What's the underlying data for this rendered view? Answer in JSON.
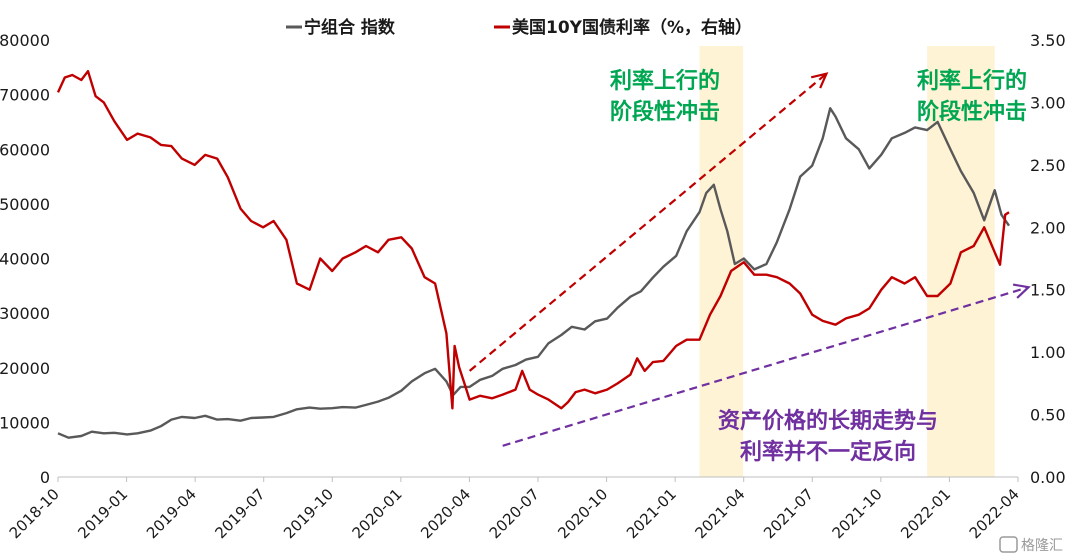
{
  "chart_data": {
    "type": "line",
    "legend": {
      "placement": "top-center",
      "items": [
        {
          "label": "宁组合 指数",
          "color": "#595959"
        },
        {
          "label": "美国10Y国债利率（%，右轴）",
          "color": "#c00000"
        }
      ]
    },
    "x_ticks": [
      "2018-10",
      "2019-01",
      "2019-04",
      "2019-07",
      "2019-10",
      "2020-01",
      "2020-04",
      "2020-07",
      "2020-10",
      "2021-01",
      "2021-04",
      "2021-07",
      "2021-10",
      "2022-01",
      "2022-04"
    ],
    "y_left": {
      "min": 0,
      "max": 80000,
      "ticks": [
        "0",
        "10000",
        "20000",
        "30000",
        "40000",
        "50000",
        "60000",
        "70000",
        "80000"
      ]
    },
    "y_right": {
      "min": 0,
      "max": 3.5,
      "ticks": [
        "0.00",
        "0.50",
        "1.00",
        "1.50",
        "2.00",
        "2.50",
        "3.00",
        "3.50"
      ]
    },
    "grid": false,
    "series": [
      {
        "name": "宁组合 指数",
        "axis": "left",
        "color": "#595959",
        "x": [
          "2018-10-01",
          "2018-10-15",
          "2018-11-01",
          "2018-11-15",
          "2018-12-01",
          "2018-12-15",
          "2019-01-01",
          "2019-01-15",
          "2019-02-01",
          "2019-02-15",
          "2019-03-01",
          "2019-03-15",
          "2019-04-01",
          "2019-04-15",
          "2019-05-01",
          "2019-05-15",
          "2019-06-01",
          "2019-06-15",
          "2019-07-01",
          "2019-07-15",
          "2019-08-01",
          "2019-08-15",
          "2019-09-01",
          "2019-09-15",
          "2019-10-01",
          "2019-10-15",
          "2019-11-01",
          "2019-11-15",
          "2019-12-01",
          "2019-12-15",
          "2020-01-01",
          "2020-01-15",
          "2020-02-01",
          "2020-02-15",
          "2020-03-01",
          "2020-03-10",
          "2020-03-20",
          "2020-04-01",
          "2020-04-15",
          "2020-05-01",
          "2020-05-15",
          "2020-06-01",
          "2020-06-15",
          "2020-07-01",
          "2020-07-15",
          "2020-08-01",
          "2020-08-15",
          "2020-09-01",
          "2020-09-15",
          "2020-10-01",
          "2020-10-15",
          "2020-11-01",
          "2020-11-15",
          "2020-12-01",
          "2020-12-15",
          "2021-01-01",
          "2021-01-15",
          "2021-02-01",
          "2021-02-10",
          "2021-02-20",
          "2021-03-01",
          "2021-03-10",
          "2021-03-20",
          "2021-04-01",
          "2021-04-15",
          "2021-05-01",
          "2021-05-15",
          "2021-06-01",
          "2021-06-15",
          "2021-07-01",
          "2021-07-15",
          "2021-07-25",
          "2021-08-01",
          "2021-08-15",
          "2021-09-01",
          "2021-09-15",
          "2021-10-01",
          "2021-10-15",
          "2021-11-01",
          "2021-11-15",
          "2021-12-01",
          "2021-12-15",
          "2022-01-01",
          "2022-01-15",
          "2022-02-01",
          "2022-02-15",
          "2022-03-01",
          "2022-03-10",
          "2022-03-20"
        ],
        "y": [
          8000,
          7200,
          7500,
          8300,
          8000,
          8100,
          7800,
          8000,
          8500,
          9300,
          10500,
          11000,
          10800,
          11200,
          10500,
          10600,
          10300,
          10800,
          10900,
          11000,
          11700,
          12400,
          12700,
          12500,
          12600,
          12800,
          12700,
          13200,
          13800,
          14500,
          15800,
          17500,
          19000,
          19800,
          17500,
          15000,
          16500,
          16500,
          17800,
          18500,
          19800,
          20500,
          21500,
          22000,
          24500,
          26000,
          27500,
          27000,
          28500,
          29000,
          31000,
          33000,
          34000,
          36500,
          38500,
          40500,
          45000,
          48500,
          52000,
          53500,
          49000,
          45000,
          39000,
          40000,
          38000,
          39000,
          43000,
          49000,
          55000,
          57000,
          62000,
          67500,
          66000,
          62000,
          60000,
          56500,
          59000,
          62000,
          63000,
          64000,
          63500,
          65000,
          60000,
          56000,
          52000,
          47000,
          52500,
          48000,
          46000
        ],
        "legend_marker": "line"
      },
      {
        "name": "美国10Y国债利率（%，右轴）",
        "axis": "right",
        "color": "#c00000",
        "x": [
          "2018-10-01",
          "2018-10-10",
          "2018-10-20",
          "2018-11-01",
          "2018-11-10",
          "2018-11-20",
          "2018-12-01",
          "2018-12-15",
          "2019-01-01",
          "2019-01-15",
          "2019-02-01",
          "2019-02-15",
          "2019-03-01",
          "2019-03-15",
          "2019-04-01",
          "2019-04-15",
          "2019-05-01",
          "2019-05-15",
          "2019-06-01",
          "2019-06-15",
          "2019-07-01",
          "2019-07-15",
          "2019-08-01",
          "2019-08-15",
          "2019-09-01",
          "2019-09-15",
          "2019-10-01",
          "2019-10-15",
          "2019-11-01",
          "2019-11-15",
          "2019-12-01",
          "2019-12-15",
          "2020-01-01",
          "2020-01-15",
          "2020-02-01",
          "2020-02-15",
          "2020-03-01",
          "2020-03-09",
          "2020-03-12",
          "2020-03-18",
          "2020-03-25",
          "2020-04-01",
          "2020-04-15",
          "2020-05-01",
          "2020-05-15",
          "2020-06-01",
          "2020-06-10",
          "2020-06-20",
          "2020-07-01",
          "2020-07-15",
          "2020-08-01",
          "2020-08-10",
          "2020-08-20",
          "2020-09-01",
          "2020-09-15",
          "2020-10-01",
          "2020-10-15",
          "2020-11-01",
          "2020-11-10",
          "2020-11-20",
          "2020-12-01",
          "2020-12-15",
          "2021-01-01",
          "2021-01-15",
          "2021-02-01",
          "2021-02-15",
          "2021-03-01",
          "2021-03-15",
          "2021-04-01",
          "2021-04-15",
          "2021-05-01",
          "2021-05-15",
          "2021-06-01",
          "2021-06-15",
          "2021-07-01",
          "2021-07-15",
          "2021-08-01",
          "2021-08-15",
          "2021-09-01",
          "2021-09-15",
          "2021-10-01",
          "2021-10-15",
          "2021-11-01",
          "2021-11-15",
          "2021-12-01",
          "2021-12-15",
          "2022-01-01",
          "2022-01-15",
          "2022-02-01",
          "2022-02-15",
          "2022-03-01",
          "2022-03-08",
          "2022-03-15",
          "2022-03-20"
        ],
        "y": [
          3.08,
          3.2,
          3.22,
          3.18,
          3.25,
          3.05,
          3.0,
          2.85,
          2.7,
          2.75,
          2.72,
          2.66,
          2.65,
          2.55,
          2.5,
          2.58,
          2.55,
          2.4,
          2.15,
          2.05,
          2.0,
          2.05,
          1.9,
          1.55,
          1.5,
          1.75,
          1.65,
          1.75,
          1.8,
          1.85,
          1.8,
          1.9,
          1.92,
          1.83,
          1.6,
          1.55,
          1.15,
          0.55,
          1.05,
          0.88,
          0.75,
          0.62,
          0.65,
          0.63,
          0.66,
          0.7,
          0.85,
          0.7,
          0.66,
          0.62,
          0.55,
          0.6,
          0.68,
          0.7,
          0.67,
          0.7,
          0.75,
          0.82,
          0.95,
          0.85,
          0.92,
          0.93,
          1.05,
          1.1,
          1.1,
          1.3,
          1.45,
          1.65,
          1.72,
          1.62,
          1.62,
          1.6,
          1.55,
          1.47,
          1.3,
          1.25,
          1.22,
          1.27,
          1.3,
          1.35,
          1.5,
          1.6,
          1.55,
          1.6,
          1.45,
          1.45,
          1.55,
          1.8,
          1.85,
          2.0,
          1.8,
          1.7,
          2.1,
          2.12
        ],
        "legend_marker": "line"
      }
    ],
    "shaded_regions": [
      {
        "from": "2021-02-01",
        "to": "2021-03-31",
        "color": "#fff3d6"
      },
      {
        "from": "2021-12-01",
        "to": "2022-03-01",
        "color": "#fff3d6"
      }
    ],
    "annotations": [
      {
        "id": "shock1",
        "lines": [
          "利率上行的",
          "阶段性冲击"
        ],
        "color": "#00a651"
      },
      {
        "id": "shock2",
        "lines": [
          "利率上行的",
          "阶段性冲击"
        ],
        "color": "#00a651"
      },
      {
        "id": "trend",
        "lines": [
          "资产价格的长期走势与",
          "利率并不一定反向"
        ],
        "color": "#7030a0"
      }
    ],
    "arrows": [
      {
        "color": "#c00000",
        "style": "dashed",
        "from": {
          "x": "2020-04-01",
          "y_right": 0.85
        },
        "to": {
          "x": "2021-07-20",
          "y_right": 3.23
        }
      },
      {
        "color": "#7030a0",
        "style": "dashed",
        "from": {
          "x": "2020-05-15",
          "y_right": 0.25
        },
        "to": {
          "x": "2022-04-15",
          "y_right": 1.52
        }
      }
    ]
  },
  "watermark": "格隆汇"
}
